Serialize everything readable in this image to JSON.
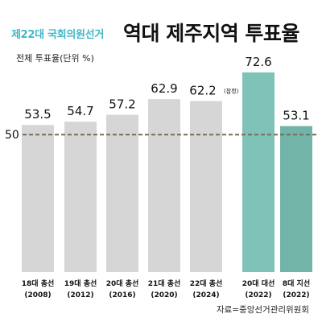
{
  "header": {
    "subtitle": "제22대 국회의원선거",
    "title": "역대 제주지역 투표율"
  },
  "unit_label": "전체 투표율(단위 %)",
  "source": "자료=중앙선거관리위원회",
  "colors": {
    "bar_default": "#d6d6d6",
    "bar_highlight": "#7fc3b8",
    "bar_highlight2": "#72b5a8",
    "reference_line": "#7a6a5c"
  },
  "chart_data": {
    "type": "bar",
    "title": "역대 제주지역 투표율",
    "ylabel": "전체 투표율(단위 %)",
    "ylim": [
      0,
      80
    ],
    "reference_line": {
      "value": 50,
      "label": "50"
    },
    "categories": [
      [
        "18대 총선",
        "(2008)"
      ],
      [
        "19대 총선",
        "(2012)"
      ],
      [
        "20대 총선",
        "(2016)"
      ],
      [
        "21대 총선",
        "(2020)"
      ],
      [
        "22대 총선",
        "(2024)"
      ],
      [
        "20대 대선",
        "(2022)"
      ],
      [
        "8대 지선",
        "(2022)"
      ]
    ],
    "values": [
      53.5,
      54.7,
      57.2,
      62.9,
      62.2,
      72.6,
      53.1
    ],
    "value_labels": [
      "53.5",
      "54.7",
      "57.2",
      "62.9",
      "62.2",
      "72.6",
      "53.1"
    ],
    "value_notes": [
      "",
      "",
      "",
      "",
      "(잠정)",
      "",
      ""
    ],
    "highlight": [
      false,
      false,
      false,
      false,
      false,
      true,
      true
    ]
  }
}
